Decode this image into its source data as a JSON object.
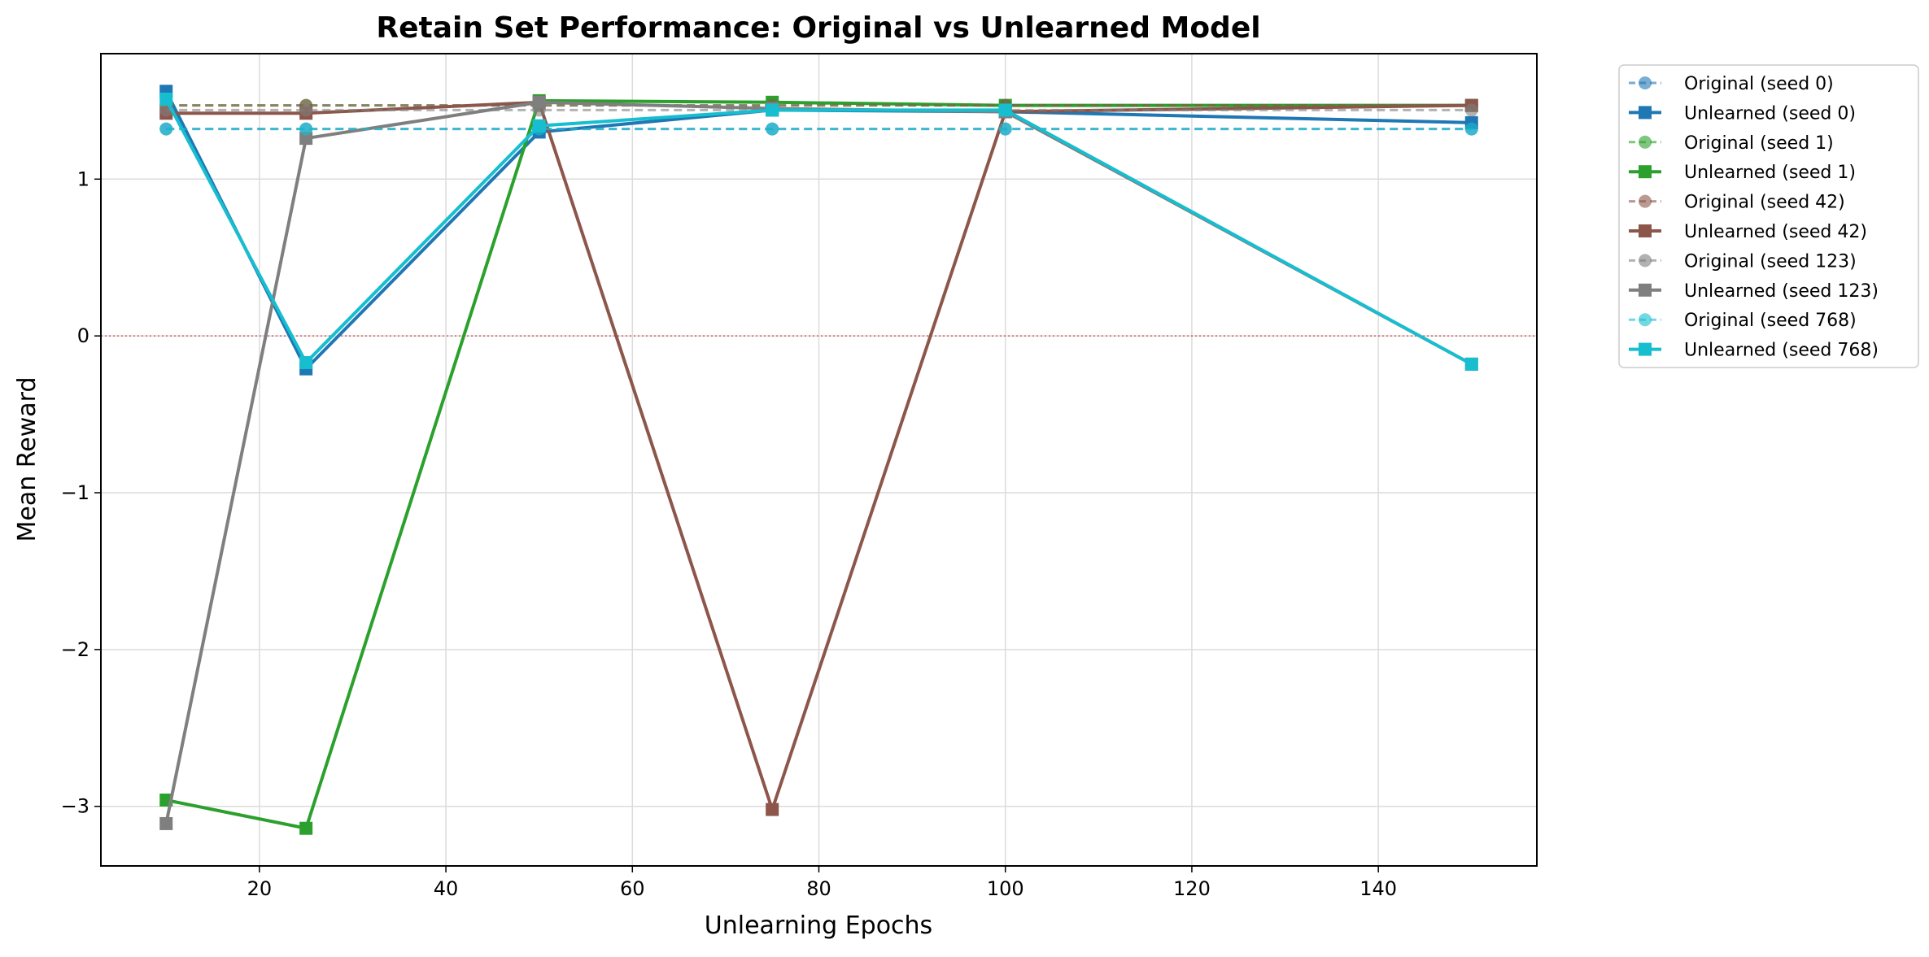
{
  "chart_data": {
    "type": "line",
    "title": "Retain Set Performance: Original vs Unlearned Model",
    "xlabel": "Unlearning Epochs",
    "ylabel": "Mean Reward",
    "x": [
      10,
      25,
      50,
      75,
      100,
      150
    ],
    "xlim": [
      3,
      157
    ],
    "ylim": [
      -3.38,
      1.8
    ],
    "xticks": [
      20,
      40,
      60,
      80,
      100,
      120,
      140
    ],
    "yticks": [
      -3,
      -2,
      -1,
      0,
      1
    ],
    "ytick_labels": [
      "−3",
      "−2",
      "−1",
      "0",
      "1"
    ],
    "grid": true,
    "reference_line": {
      "y": 0,
      "color": "#d62728",
      "style": "dotted"
    },
    "legend_position": "outside-right",
    "series": [
      {
        "name": "Original (seed 0)",
        "kind": "original",
        "color": "#1f77b4",
        "values": [
          1.32,
          1.32,
          1.32,
          1.32,
          1.32,
          1.32
        ]
      },
      {
        "name": "Unlearned (seed 0)",
        "kind": "unlearned",
        "color": "#1f77b4",
        "values": [
          1.56,
          -0.21,
          1.3,
          1.44,
          1.43,
          1.36
        ]
      },
      {
        "name": "Original (seed 1)",
        "kind": "original",
        "color": "#2ca02c",
        "values": [
          1.47,
          1.47,
          1.47,
          1.47,
          1.47,
          1.47
        ]
      },
      {
        "name": "Unlearned (seed 1)",
        "kind": "unlearned",
        "color": "#2ca02c",
        "values": [
          -2.96,
          -3.14,
          1.5,
          1.49,
          1.47,
          1.47
        ]
      },
      {
        "name": "Original (seed 42)",
        "kind": "original",
        "color": "#8c564b",
        "values": [
          1.47,
          1.47,
          1.47,
          1.47,
          1.47,
          1.47
        ]
      },
      {
        "name": "Unlearned (seed 42)",
        "kind": "unlearned",
        "color": "#8c564b",
        "values": [
          1.42,
          1.42,
          1.49,
          -3.02,
          1.43,
          1.47
        ]
      },
      {
        "name": "Original (seed 123)",
        "kind": "original",
        "color": "#7f7f7f",
        "values": [
          1.44,
          1.44,
          1.44,
          1.44,
          1.44,
          1.44
        ]
      },
      {
        "name": "Unlearned (seed 123)",
        "kind": "unlearned",
        "color": "#7f7f7f",
        "values": [
          -3.11,
          1.26,
          1.49,
          1.45,
          1.43,
          -0.18
        ]
      },
      {
        "name": "Original (seed 768)",
        "kind": "original",
        "color": "#17becf",
        "values": [
          1.32,
          1.32,
          1.32,
          1.32,
          1.32,
          1.32
        ]
      },
      {
        "name": "Unlearned (seed 768)",
        "kind": "unlearned",
        "color": "#17becf",
        "values": [
          1.51,
          -0.17,
          1.34,
          1.44,
          1.44,
          -0.18
        ]
      }
    ]
  }
}
